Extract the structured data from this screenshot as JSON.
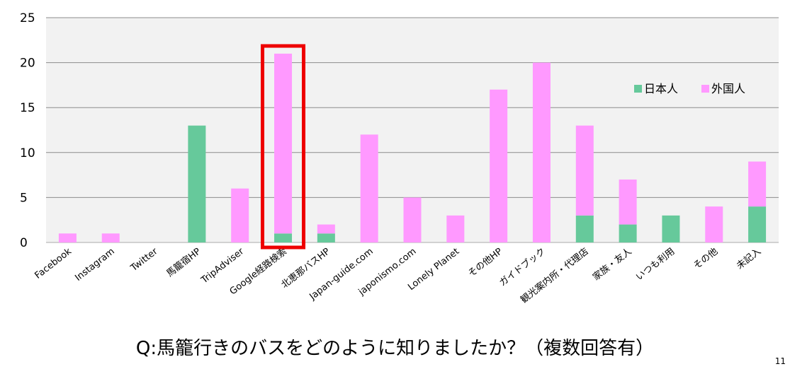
{
  "chart_data": {
    "type": "bar",
    "stacked": true,
    "categories": [
      "Facebook",
      "Instagram",
      "Twitter",
      "馬籠宿HP",
      "TripAdviser",
      "Google経路検索",
      "北恵那バスHP",
      "Japan-guide.com",
      "japonismo.com",
      "Lonely Planet",
      "その他HP",
      "ガイドブック",
      "観光案内所・代理店",
      "家族・友人",
      "いつも利用",
      "その他",
      "未記入"
    ],
    "series": [
      {
        "name": "日本人",
        "color": "#66c99b",
        "values": [
          0,
          0,
          0,
          13,
          0,
          1,
          1,
          0,
          0,
          0,
          0,
          0,
          3,
          2,
          3,
          0,
          4
        ]
      },
      {
        "name": "外国人",
        "color": "#ff99ff",
        "values": [
          1,
          1,
          0,
          0,
          6,
          20,
          1,
          12,
          5,
          3,
          17,
          20,
          10,
          5,
          0,
          4,
          5
        ]
      }
    ],
    "ylim": [
      0,
      25
    ],
    "yticks": [
      0,
      5,
      10,
      15,
      20,
      25
    ],
    "grid": true,
    "legend": "top-right",
    "highlight_category": "Google経路検索"
  },
  "question": "Q:馬籠行きのバスをどのように知りましたか？（複数回答有）",
  "page_number": "11"
}
